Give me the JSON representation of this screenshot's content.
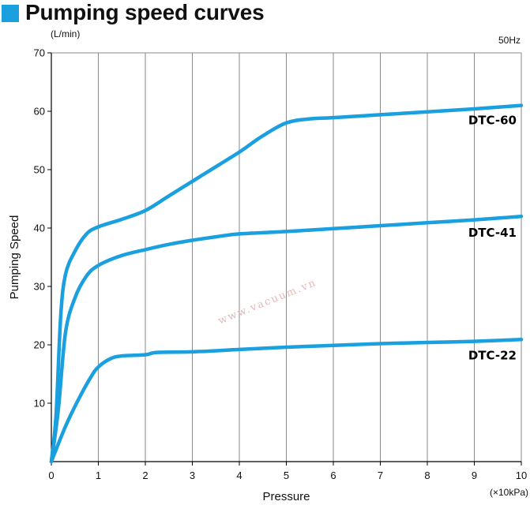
{
  "header": {
    "title": "Pumping speed curves"
  },
  "watermark": "www.vacuum.vn",
  "chart_data": {
    "type": "line",
    "title": "Pumping speed curves",
    "frequency_note": "50Hz",
    "xlabel": "Pressure",
    "x_unit": "(×10kPa)",
    "ylabel": "Pumping Speed",
    "y_unit": "(L/min)",
    "xlim": [
      0,
      10
    ],
    "ylim": [
      0,
      70
    ],
    "xticks": [
      "0",
      "1",
      "2",
      "3",
      "4",
      "5",
      "6",
      "7",
      "8",
      "9",
      "10"
    ],
    "yticks": [
      "10",
      "20",
      "30",
      "40",
      "50",
      "60",
      "70"
    ],
    "grid": "vertical",
    "color": "#1a9fdf",
    "series": [
      {
        "name": "DTC-60",
        "points": [
          [
            0,
            0
          ],
          [
            0.1,
            8
          ],
          [
            0.2,
            25
          ],
          [
            0.3,
            32
          ],
          [
            0.5,
            36
          ],
          [
            0.75,
            39
          ],
          [
            1,
            40.2
          ],
          [
            1.5,
            41.5
          ],
          [
            2,
            43
          ],
          [
            2.5,
            45.5
          ],
          [
            3,
            48
          ],
          [
            3.5,
            50.5
          ],
          [
            4,
            53
          ],
          [
            4.5,
            55.8
          ],
          [
            5,
            58
          ],
          [
            5.5,
            58.7
          ],
          [
            6,
            58.9
          ],
          [
            7,
            59.4
          ],
          [
            8,
            59.9
          ],
          [
            9,
            60.4
          ],
          [
            10,
            61
          ]
        ]
      },
      {
        "name": "DTC-41",
        "points": [
          [
            0,
            0
          ],
          [
            0.15,
            9
          ],
          [
            0.3,
            22
          ],
          [
            0.5,
            28
          ],
          [
            0.75,
            31.8
          ],
          [
            1,
            33.6
          ],
          [
            1.5,
            35.3
          ],
          [
            2,
            36.3
          ],
          [
            2.5,
            37.2
          ],
          [
            3,
            37.9
          ],
          [
            3.5,
            38.5
          ],
          [
            4,
            39
          ],
          [
            5,
            39.4
          ],
          [
            6,
            39.9
          ],
          [
            7,
            40.4
          ],
          [
            8,
            40.9
          ],
          [
            9,
            41.4
          ],
          [
            10,
            42
          ]
        ]
      },
      {
        "name": "DTC-22",
        "points": [
          [
            0,
            0
          ],
          [
            0.3,
            6
          ],
          [
            0.6,
            11
          ],
          [
            0.85,
            14.6
          ],
          [
            1,
            16.2
          ],
          [
            1.25,
            17.6
          ],
          [
            1.5,
            18.1
          ],
          [
            2,
            18.3
          ],
          [
            2.25,
            18.7
          ],
          [
            3,
            18.8
          ],
          [
            4,
            19.2
          ],
          [
            5,
            19.6
          ],
          [
            6,
            19.9
          ],
          [
            7,
            20.2
          ],
          [
            8,
            20.4
          ],
          [
            9,
            20.6
          ],
          [
            10,
            20.9
          ]
        ]
      }
    ]
  }
}
